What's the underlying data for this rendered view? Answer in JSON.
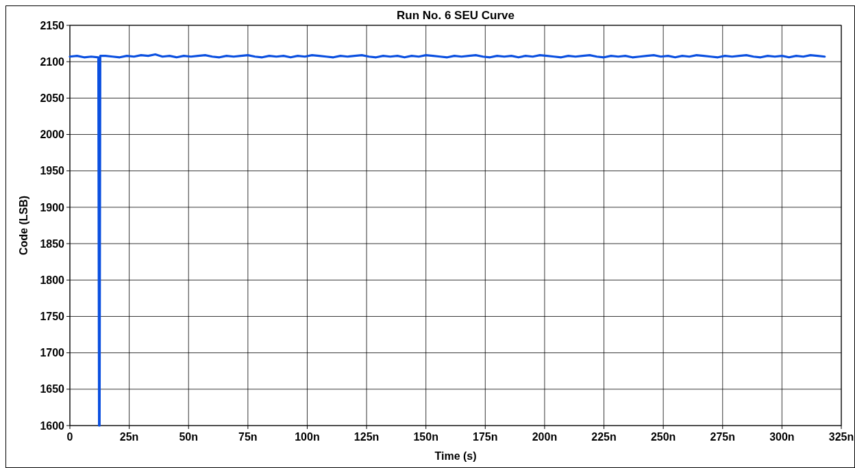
{
  "chart_data": {
    "type": "line",
    "title": "Run No. 6 SEU Curve",
    "xlabel": "Time (s)",
    "ylabel": "Code (LSB)",
    "xlim": [
      0,
      325
    ],
    "xticks": [
      0,
      {
        "value": 25,
        "label": "25n"
      },
      {
        "value": 50,
        "label": "50n"
      },
      {
        "value": 75,
        "label": "75n"
      },
      {
        "value": 100,
        "label": "100n"
      },
      {
        "value": 125,
        "label": "125n"
      },
      {
        "value": 150,
        "label": "150n"
      },
      {
        "value": 175,
        "label": "175n"
      },
      {
        "value": 200,
        "label": "200n"
      },
      {
        "value": 225,
        "label": "225n"
      },
      {
        "value": 250,
        "label": "250n"
      },
      {
        "value": 275,
        "label": "275n"
      },
      {
        "value": 300,
        "label": "300n"
      },
      {
        "value": 325,
        "label": "325n"
      }
    ],
    "ylim": [
      1600,
      2150
    ],
    "yticks": [
      1600,
      1650,
      1700,
      1750,
      1800,
      1850,
      1900,
      1950,
      2000,
      2050,
      2100,
      2150
    ],
    "grid": true,
    "marker": "none",
    "line_style": "solid",
    "series": [
      {
        "color": "#0a4fe0",
        "x": [
          0,
          3,
          6,
          9,
          12,
          12.3,
          12.5,
          12.8,
          15,
          18,
          21,
          24,
          27,
          30,
          33,
          36,
          39,
          42,
          45,
          48,
          51,
          54,
          57,
          60,
          63,
          66,
          69,
          72,
          75,
          78,
          81,
          84,
          87,
          90,
          93,
          96,
          99,
          102,
          105,
          108,
          111,
          114,
          117,
          120,
          123,
          126,
          129,
          132,
          135,
          138,
          141,
          144,
          147,
          150,
          153,
          156,
          159,
          162,
          165,
          168,
          171,
          174,
          177,
          180,
          183,
          186,
          189,
          192,
          195,
          198,
          201,
          204,
          207,
          210,
          213,
          216,
          219,
          222,
          225,
          228,
          231,
          234,
          237,
          240,
          243,
          246,
          249,
          252,
          255,
          258,
          261,
          264,
          267,
          270,
          273,
          276,
          279,
          282,
          285,
          288,
          291,
          294,
          297,
          300,
          303,
          306,
          309,
          312,
          315,
          318
        ],
        "values": [
          2107,
          2108,
          2106,
          2107,
          2106,
          1600,
          1600,
          2108,
          2108,
          2107,
          2106,
          2108,
          2107,
          2109,
          2108,
          2110,
          2107,
          2108,
          2106,
          2108,
          2107,
          2108,
          2109,
          2107,
          2106,
          2108,
          2107,
          2108,
          2109,
          2107,
          2106,
          2108,
          2107,
          2108,
          2106,
          2108,
          2107,
          2109,
          2108,
          2107,
          2106,
          2108,
          2107,
          2108,
          2109,
          2107,
          2106,
          2108,
          2107,
          2108,
          2106,
          2108,
          2107,
          2109,
          2108,
          2107,
          2106,
          2108,
          2107,
          2108,
          2109,
          2107,
          2106,
          2108,
          2107,
          2108,
          2106,
          2108,
          2107,
          2109,
          2108,
          2107,
          2106,
          2108,
          2107,
          2108,
          2109,
          2107,
          2106,
          2108,
          2107,
          2108,
          2106,
          2107,
          2108,
          2109,
          2107,
          2108,
          2106,
          2108,
          2107,
          2109,
          2108,
          2107,
          2106,
          2108,
          2107,
          2108,
          2109,
          2107,
          2106,
          2108,
          2107,
          2108,
          2106,
          2108,
          2107,
          2109,
          2108,
          2107
        ]
      }
    ]
  }
}
